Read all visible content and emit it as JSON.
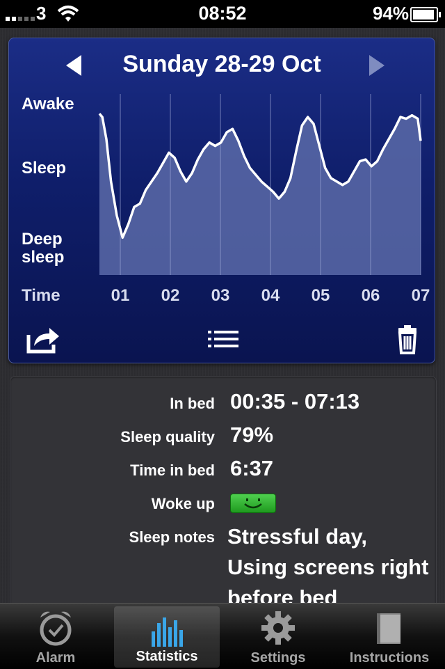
{
  "status_bar": {
    "carrier": "3",
    "time": "08:52",
    "battery": "94%"
  },
  "graph": {
    "title": "Sunday 28-29 Oct",
    "y_labels": {
      "awake": "Awake",
      "sleep": "Sleep",
      "deep": "Deep\nsleep",
      "time": "Time"
    },
    "chart_data": {
      "type": "area",
      "x_ticks": [
        "01",
        "02",
        "03",
        "04",
        "05",
        "06",
        "07"
      ],
      "x_range": [
        "00:35",
        "07:13"
      ],
      "levels": [
        "Deep sleep",
        "Sleep",
        "Awake"
      ],
      "points": [
        [
          0.0,
          0.95
        ],
        [
          0.05,
          0.93
        ],
        [
          0.12,
          0.8
        ],
        [
          0.2,
          0.55
        ],
        [
          0.3,
          0.35
        ],
        [
          0.4,
          0.22
        ],
        [
          0.5,
          0.3
        ],
        [
          0.6,
          0.4
        ],
        [
          0.7,
          0.42
        ],
        [
          0.8,
          0.5
        ],
        [
          0.9,
          0.55
        ],
        [
          1.0,
          0.6
        ],
        [
          1.1,
          0.66
        ],
        [
          1.2,
          0.72
        ],
        [
          1.3,
          0.69
        ],
        [
          1.4,
          0.61
        ],
        [
          1.5,
          0.55
        ],
        [
          1.6,
          0.6
        ],
        [
          1.7,
          0.68
        ],
        [
          1.8,
          0.74
        ],
        [
          1.9,
          0.78
        ],
        [
          2.0,
          0.76
        ],
        [
          2.1,
          0.78
        ],
        [
          2.2,
          0.84
        ],
        [
          2.3,
          0.86
        ],
        [
          2.4,
          0.79
        ],
        [
          2.5,
          0.7
        ],
        [
          2.6,
          0.63
        ],
        [
          2.7,
          0.59
        ],
        [
          2.8,
          0.55
        ],
        [
          2.9,
          0.52
        ],
        [
          3.0,
          0.49
        ],
        [
          3.1,
          0.45
        ],
        [
          3.2,
          0.49
        ],
        [
          3.3,
          0.57
        ],
        [
          3.4,
          0.73
        ],
        [
          3.5,
          0.88
        ],
        [
          3.6,
          0.93
        ],
        [
          3.7,
          0.89
        ],
        [
          3.8,
          0.76
        ],
        [
          3.9,
          0.63
        ],
        [
          4.0,
          0.57
        ],
        [
          4.1,
          0.55
        ],
        [
          4.2,
          0.53
        ],
        [
          4.3,
          0.55
        ],
        [
          4.4,
          0.61
        ],
        [
          4.5,
          0.67
        ],
        [
          4.6,
          0.68
        ],
        [
          4.7,
          0.64
        ],
        [
          4.8,
          0.67
        ],
        [
          4.9,
          0.74
        ],
        [
          5.0,
          0.8
        ],
        [
          5.1,
          0.86
        ],
        [
          5.2,
          0.93
        ],
        [
          5.3,
          0.92
        ],
        [
          5.4,
          0.94
        ],
        [
          5.5,
          0.92
        ],
        [
          5.55,
          0.79
        ]
      ]
    },
    "icons": {
      "prev": "left-arrow-icon",
      "next": "right-arrow-icon",
      "share": "share-icon",
      "list": "list-icon",
      "delete": "trash-icon"
    }
  },
  "details": {
    "in_bed": {
      "label": "In bed",
      "value": "00:35 - 07:13"
    },
    "quality": {
      "label": "Sleep quality",
      "value": "79%"
    },
    "time_in_bed": {
      "label": "Time in bed",
      "value": "6:37"
    },
    "woke_up": {
      "label": "Woke up",
      "value_icon": "happy-face-icon"
    },
    "notes": {
      "label": "Sleep notes",
      "value": "Stressful day, Using screens right before bed"
    }
  },
  "tabs": [
    {
      "label": "Alarm",
      "icon": "alarm-clock-icon"
    },
    {
      "label": "Statistics",
      "icon": "bar-chart-icon",
      "active": true
    },
    {
      "label": "Settings",
      "icon": "gear-icon"
    },
    {
      "label": "Instructions",
      "icon": "book-icon"
    }
  ],
  "colors": {
    "graph_bg": "#12227a",
    "graph_fill": "#5a6aa8",
    "line": "#ffffff",
    "active_tab_icon": "#3aa6e8",
    "smiley": "#2fb52f"
  }
}
